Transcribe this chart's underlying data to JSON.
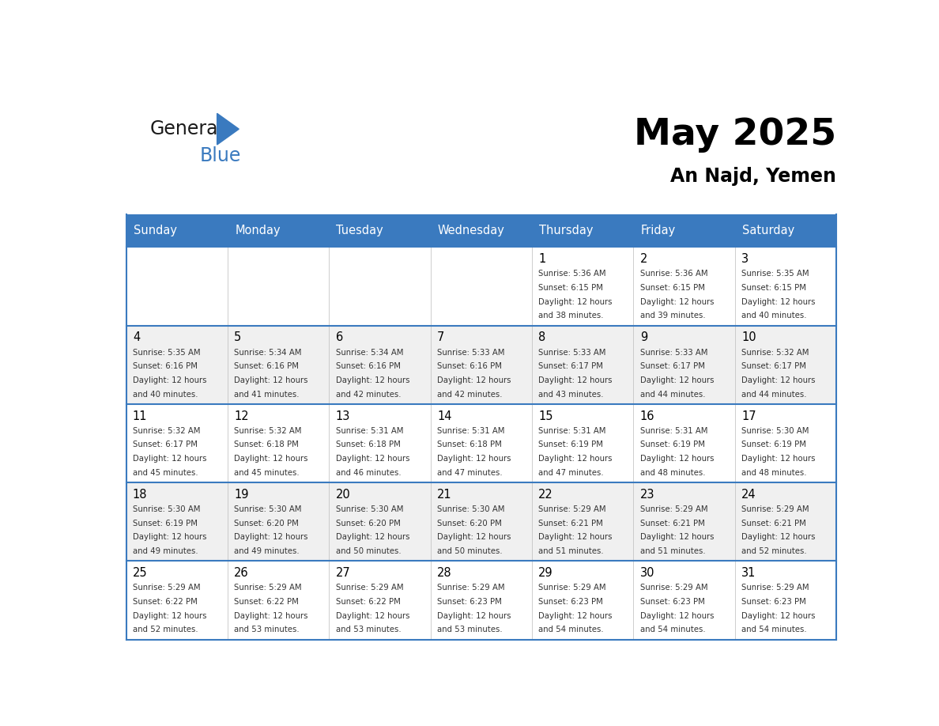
{
  "title": "May 2025",
  "subtitle": "An Najd, Yemen",
  "header_bg_color": "#3a7abf",
  "header_text_color": "#ffffff",
  "cell_bg_even": "#f0f0f0",
  "cell_bg_odd": "#ffffff",
  "grid_color": "#3a7abf",
  "days_of_week": [
    "Sunday",
    "Monday",
    "Tuesday",
    "Wednesday",
    "Thursday",
    "Friday",
    "Saturday"
  ],
  "day_number_color": "#1a1a2e",
  "info_text_color": "#333333",
  "calendar": [
    [
      null,
      null,
      null,
      null,
      {
        "day": 1,
        "sunrise": "5:36 AM",
        "sunset": "6:15 PM",
        "daylight_suffix": "38 minutes."
      },
      {
        "day": 2,
        "sunrise": "5:36 AM",
        "sunset": "6:15 PM",
        "daylight_suffix": "39 minutes."
      },
      {
        "day": 3,
        "sunrise": "5:35 AM",
        "sunset": "6:15 PM",
        "daylight_suffix": "40 minutes."
      }
    ],
    [
      {
        "day": 4,
        "sunrise": "5:35 AM",
        "sunset": "6:16 PM",
        "daylight_suffix": "40 minutes."
      },
      {
        "day": 5,
        "sunrise": "5:34 AM",
        "sunset": "6:16 PM",
        "daylight_suffix": "41 minutes."
      },
      {
        "day": 6,
        "sunrise": "5:34 AM",
        "sunset": "6:16 PM",
        "daylight_suffix": "42 minutes."
      },
      {
        "day": 7,
        "sunrise": "5:33 AM",
        "sunset": "6:16 PM",
        "daylight_suffix": "42 minutes."
      },
      {
        "day": 8,
        "sunrise": "5:33 AM",
        "sunset": "6:17 PM",
        "daylight_suffix": "43 minutes."
      },
      {
        "day": 9,
        "sunrise": "5:33 AM",
        "sunset": "6:17 PM",
        "daylight_suffix": "44 minutes."
      },
      {
        "day": 10,
        "sunrise": "5:32 AM",
        "sunset": "6:17 PM",
        "daylight_suffix": "44 minutes."
      }
    ],
    [
      {
        "day": 11,
        "sunrise": "5:32 AM",
        "sunset": "6:17 PM",
        "daylight_suffix": "45 minutes."
      },
      {
        "day": 12,
        "sunrise": "5:32 AM",
        "sunset": "6:18 PM",
        "daylight_suffix": "45 minutes."
      },
      {
        "day": 13,
        "sunrise": "5:31 AM",
        "sunset": "6:18 PM",
        "daylight_suffix": "46 minutes."
      },
      {
        "day": 14,
        "sunrise": "5:31 AM",
        "sunset": "6:18 PM",
        "daylight_suffix": "47 minutes."
      },
      {
        "day": 15,
        "sunrise": "5:31 AM",
        "sunset": "6:19 PM",
        "daylight_suffix": "47 minutes."
      },
      {
        "day": 16,
        "sunrise": "5:31 AM",
        "sunset": "6:19 PM",
        "daylight_suffix": "48 minutes."
      },
      {
        "day": 17,
        "sunrise": "5:30 AM",
        "sunset": "6:19 PM",
        "daylight_suffix": "48 minutes."
      }
    ],
    [
      {
        "day": 18,
        "sunrise": "5:30 AM",
        "sunset": "6:19 PM",
        "daylight_suffix": "49 minutes."
      },
      {
        "day": 19,
        "sunrise": "5:30 AM",
        "sunset": "6:20 PM",
        "daylight_suffix": "49 minutes."
      },
      {
        "day": 20,
        "sunrise": "5:30 AM",
        "sunset": "6:20 PM",
        "daylight_suffix": "50 minutes."
      },
      {
        "day": 21,
        "sunrise": "5:30 AM",
        "sunset": "6:20 PM",
        "daylight_suffix": "50 minutes."
      },
      {
        "day": 22,
        "sunrise": "5:29 AM",
        "sunset": "6:21 PM",
        "daylight_suffix": "51 minutes."
      },
      {
        "day": 23,
        "sunrise": "5:29 AM",
        "sunset": "6:21 PM",
        "daylight_suffix": "51 minutes."
      },
      {
        "day": 24,
        "sunrise": "5:29 AM",
        "sunset": "6:21 PM",
        "daylight_suffix": "52 minutes."
      }
    ],
    [
      {
        "day": 25,
        "sunrise": "5:29 AM",
        "sunset": "6:22 PM",
        "daylight_suffix": "52 minutes."
      },
      {
        "day": 26,
        "sunrise": "5:29 AM",
        "sunset": "6:22 PM",
        "daylight_suffix": "53 minutes."
      },
      {
        "day": 27,
        "sunrise": "5:29 AM",
        "sunset": "6:22 PM",
        "daylight_suffix": "53 minutes."
      },
      {
        "day": 28,
        "sunrise": "5:29 AM",
        "sunset": "6:23 PM",
        "daylight_suffix": "53 minutes."
      },
      {
        "day": 29,
        "sunrise": "5:29 AM",
        "sunset": "6:23 PM",
        "daylight_suffix": "54 minutes."
      },
      {
        "day": 30,
        "sunrise": "5:29 AM",
        "sunset": "6:23 PM",
        "daylight_suffix": "54 minutes."
      },
      {
        "day": 31,
        "sunrise": "5:29 AM",
        "sunset": "6:23 PM",
        "daylight_suffix": "54 minutes."
      }
    ]
  ]
}
